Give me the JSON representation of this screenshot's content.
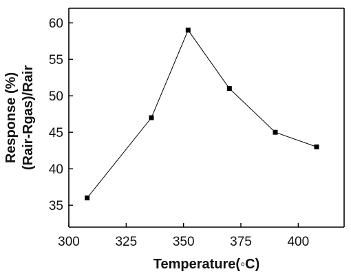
{
  "chart_data": {
    "type": "line",
    "title": "",
    "xlabel": "Temperature(◦C)",
    "ylabel_line1": "Response (%)",
    "ylabel_line2": "(Rair-Rgas)/Rair",
    "xlim": [
      300,
      420
    ],
    "ylim": [
      32,
      62
    ],
    "xticks": [
      300,
      325,
      350,
      375,
      400
    ],
    "yticks": [
      35,
      40,
      45,
      50,
      55,
      60
    ],
    "grid": false,
    "series": [
      {
        "marker": "square",
        "color": "#000000",
        "x": [
          308,
          336,
          352,
          370,
          390,
          408
        ],
        "y": [
          36,
          47,
          59,
          51,
          45,
          43
        ]
      }
    ]
  }
}
